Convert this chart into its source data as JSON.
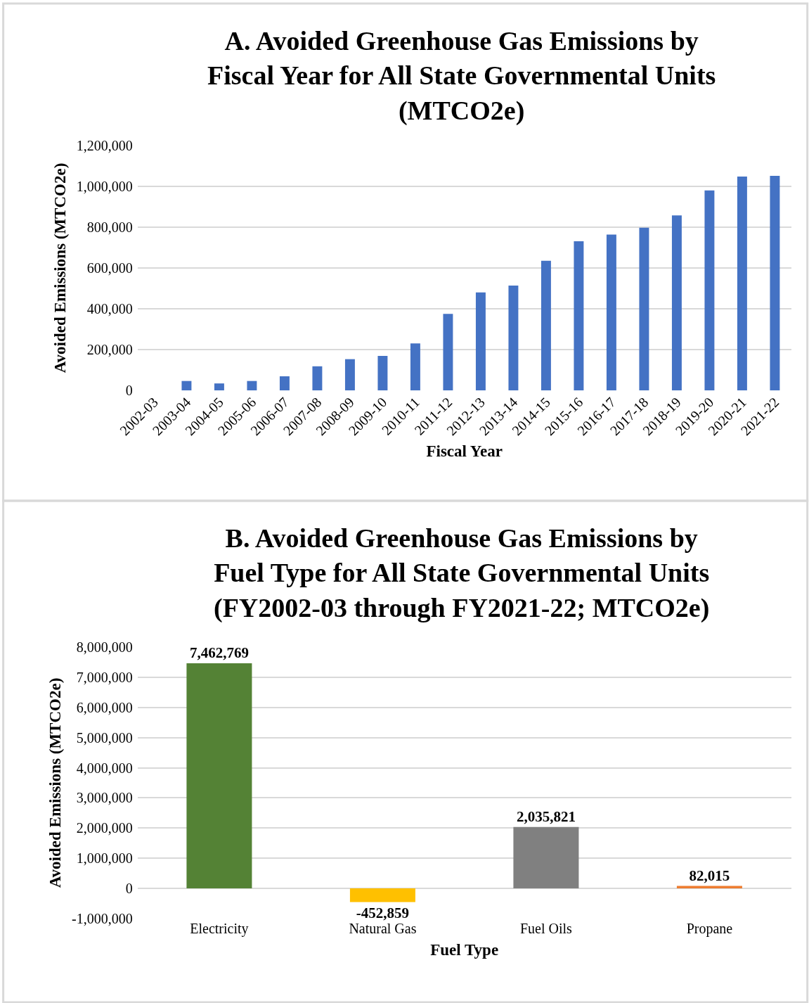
{
  "chart_data": [
    {
      "type": "bar",
      "title": "A. Avoided Greenhouse Gas Emissions by\nFiscal Year for All State Governmental Units\n(MTCO2e)",
      "xlabel": "Fiscal Year",
      "ylabel": "Avoided Emissions (MTCO2e)",
      "categories": [
        "2002-03",
        "2003-04",
        "2004-05",
        "2005-06",
        "2006-07",
        "2007-08",
        "2008-09",
        "2009-10",
        "2010-11",
        "2011-12",
        "2012-13",
        "2013-14",
        "2014-15",
        "2015-16",
        "2016-17",
        "2017-18",
        "2018-19",
        "2019-20",
        "2020-21",
        "2021-22"
      ],
      "values": [
        0,
        46000,
        34000,
        46000,
        69000,
        118000,
        153000,
        169000,
        230000,
        375000,
        480000,
        514000,
        635000,
        731000,
        764000,
        797000,
        858000,
        980000,
        1048000,
        1052000
      ],
      "color": "#4472c4",
      "ylim": [
        0,
        1200000
      ],
      "yticks": [
        {
          "value": 0,
          "label": "0"
        },
        {
          "value": 200000,
          "label": "200,000"
        },
        {
          "value": 400000,
          "label": "400,000"
        },
        {
          "value": 600000,
          "label": "600,000"
        },
        {
          "value": 800000,
          "label": "800,000"
        },
        {
          "value": 1000000,
          "label": "1,000,000"
        },
        {
          "value": 1200000,
          "label": "1,200,000"
        }
      ],
      "grid": "y"
    },
    {
      "type": "bar",
      "title": "B. Avoided Greenhouse Gas Emissions by\nFuel Type for All State Governmental Units\n(FY2002-03 through FY2021-22; MTCO2e)",
      "xlabel": "Fuel Type",
      "ylabel": "Avoided Emissions (MTCO2e)",
      "categories": [
        "Electricity",
        "Natural Gas",
        "Fuel Oils",
        "Propane"
      ],
      "values": [
        7462769,
        -452859,
        2035821,
        82015
      ],
      "colors": [
        "#548235",
        "#ffc000",
        "#808080",
        "#ed7d31"
      ],
      "value_labels": [
        "7,462,769",
        "-452,859",
        "2,035,821",
        "82,015"
      ],
      "ylim": [
        -1000000,
        8000000
      ],
      "yticks": [
        {
          "value": -1000000,
          "label": "-1,000,000"
        },
        {
          "value": 0,
          "label": "0"
        },
        {
          "value": 1000000,
          "label": "1,000,000"
        },
        {
          "value": 2000000,
          "label": "2,000,000"
        },
        {
          "value": 3000000,
          "label": "3,000,000"
        },
        {
          "value": 4000000,
          "label": "4,000,000"
        },
        {
          "value": 5000000,
          "label": "5,000,000"
        },
        {
          "value": 6000000,
          "label": "6,000,000"
        },
        {
          "value": 7000000,
          "label": "7,000,000"
        },
        {
          "value": 8000000,
          "label": "8,000,000"
        }
      ],
      "grid": "y"
    }
  ]
}
